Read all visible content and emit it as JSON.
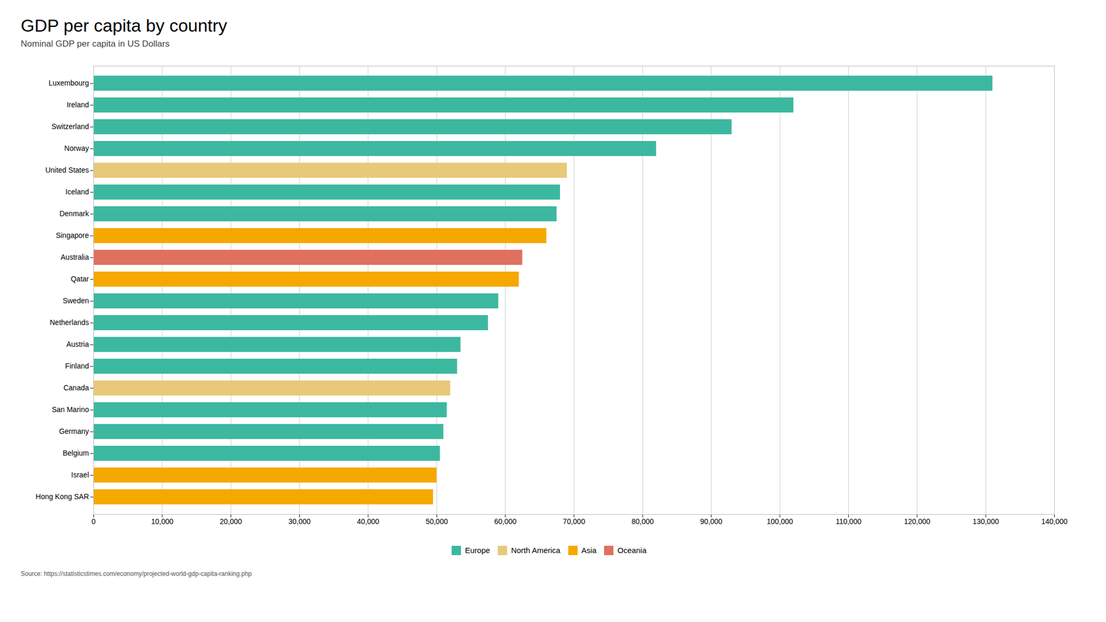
{
  "chart_data": {
    "type": "bar",
    "orientation": "horizontal",
    "title": "GDP per capita by country",
    "subtitle": "Nominal GDP per capita in US Dollars",
    "source": "Source: https://statisticstimes.com/economy/projected-world-gdp-capita-ranking.php",
    "categories": [
      "Luxembourg",
      "Ireland",
      "Switzerland",
      "Norway",
      "United States",
      "Iceland",
      "Denmark",
      "Singapore",
      "Australia",
      "Qatar",
      "Sweden",
      "Netherlands",
      "Austria",
      "Finland",
      "Canada",
      "San Marino",
      "Germany",
      "Belgium",
      "Israel",
      "Hong Kong SAR"
    ],
    "series": [
      {
        "name": "Europe",
        "color": "#3db8a0",
        "values": [
          131000,
          102000,
          93000,
          82000,
          null,
          68000,
          67500,
          null,
          null,
          null,
          59000,
          57500,
          53500,
          53000,
          null,
          51500,
          51000,
          50500,
          null,
          null
        ]
      },
      {
        "name": "North America",
        "color": "#e8c97a",
        "values": [
          null,
          null,
          null,
          null,
          69000,
          null,
          null,
          null,
          null,
          null,
          null,
          null,
          null,
          null,
          52000,
          null,
          null,
          null,
          null,
          null
        ]
      },
      {
        "name": "Asia",
        "color": "#f5a800",
        "values": [
          null,
          null,
          null,
          null,
          null,
          null,
          null,
          66000,
          null,
          62000,
          null,
          null,
          null,
          null,
          null,
          null,
          null,
          null,
          50000,
          49500
        ]
      },
      {
        "name": "Oceania",
        "color": "#e07060",
        "values": [
          null,
          null,
          null,
          null,
          null,
          null,
          null,
          null,
          62500,
          null,
          null,
          null,
          null,
          null,
          null,
          null,
          null,
          null,
          null,
          null
        ]
      }
    ],
    "xlim": [
      0,
      140000
    ],
    "xticks": [
      0,
      {
        "value": 10000,
        "label": "10,000"
      },
      {
        "value": 20000,
        "label": "20,000"
      },
      {
        "value": 30000,
        "label": "30,000"
      },
      {
        "value": 40000,
        "label": "40,000"
      },
      {
        "value": 50000,
        "label": "50,000"
      },
      {
        "value": 60000,
        "label": "60,000"
      },
      {
        "value": 70000,
        "label": "70,000"
      },
      {
        "value": 80000,
        "label": "80,000"
      },
      {
        "value": 90000,
        "label": "90,000"
      },
      {
        "value": 100000,
        "label": "100,000"
      },
      {
        "value": 110000,
        "label": "110,000"
      },
      {
        "value": 120000,
        "label": "120,000"
      },
      {
        "value": 130000,
        "label": "130,000"
      },
      {
        "value": 140000,
        "label": "140,000"
      }
    ],
    "grid": true,
    "legend": "bottom"
  }
}
